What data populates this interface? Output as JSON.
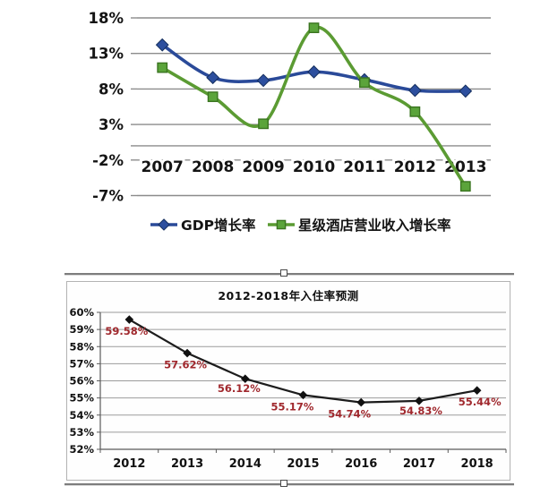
{
  "page": {
    "background": "#ffffff"
  },
  "chart_data": [
    {
      "type": "line",
      "title": "",
      "categories": [
        "2007",
        "2008",
        "2009",
        "2010",
        "2011",
        "2012",
        "2013"
      ],
      "series": [
        {
          "name": "GDP增长率",
          "marker": "diamond",
          "color": "#2a4a99",
          "marker_fill": "#2d4f9e",
          "marker_stroke": "#16305e",
          "values": [
            14.2,
            9.6,
            9.2,
            10.4,
            9.3,
            7.8,
            7.7
          ]
        },
        {
          "name": "星级酒店营业收入增长率",
          "marker": "square",
          "color": "#5b9b33",
          "marker_fill": "#5ba43b",
          "marker_stroke": "#3a7420",
          "values": [
            11.0,
            6.9,
            3.1,
            16.6,
            8.9,
            4.8,
            -5.7
          ]
        }
      ],
      "ylim": [
        -7,
        18
      ],
      "grid_values": [
        18,
        13,
        8,
        3,
        -2,
        -7
      ],
      "ytick_labels": [
        "18%",
        "13%",
        "8%",
        "3%",
        "-2%",
        "-7%"
      ],
      "zero_axis": 0,
      "grid": true,
      "grid_color": "#8c8c8c",
      "text_color": "#141414",
      "legend_position": "bottom"
    },
    {
      "type": "line",
      "title": "2012-2018年入住率预测",
      "categories": [
        "2012",
        "2013",
        "2014",
        "2015",
        "2016",
        "2017",
        "2018"
      ],
      "series": [
        {
          "name": "入住率",
          "marker": "diamond",
          "color": "#1c1c1c",
          "values": [
            59.58,
            57.62,
            56.12,
            55.17,
            54.74,
            54.83,
            55.44
          ]
        }
      ],
      "data_labels": [
        "59.58%",
        "57.62%",
        "56.12%",
        "55.17%",
        "54.74%",
        "54.83%",
        "55.44%"
      ],
      "data_label_color": "#a0282d",
      "ylim": [
        52,
        60
      ],
      "grid_values": [
        60,
        59,
        58,
        57,
        56,
        55,
        54,
        53,
        52
      ],
      "ytick_labels": [
        "60%",
        "59%",
        "58%",
        "57%",
        "56%",
        "55%",
        "54%",
        "53%",
        "52%"
      ],
      "grid": true,
      "grid_color": "#9b9b9b",
      "axis_color": "#5a5a5a",
      "text_color": "#111111"
    }
  ]
}
